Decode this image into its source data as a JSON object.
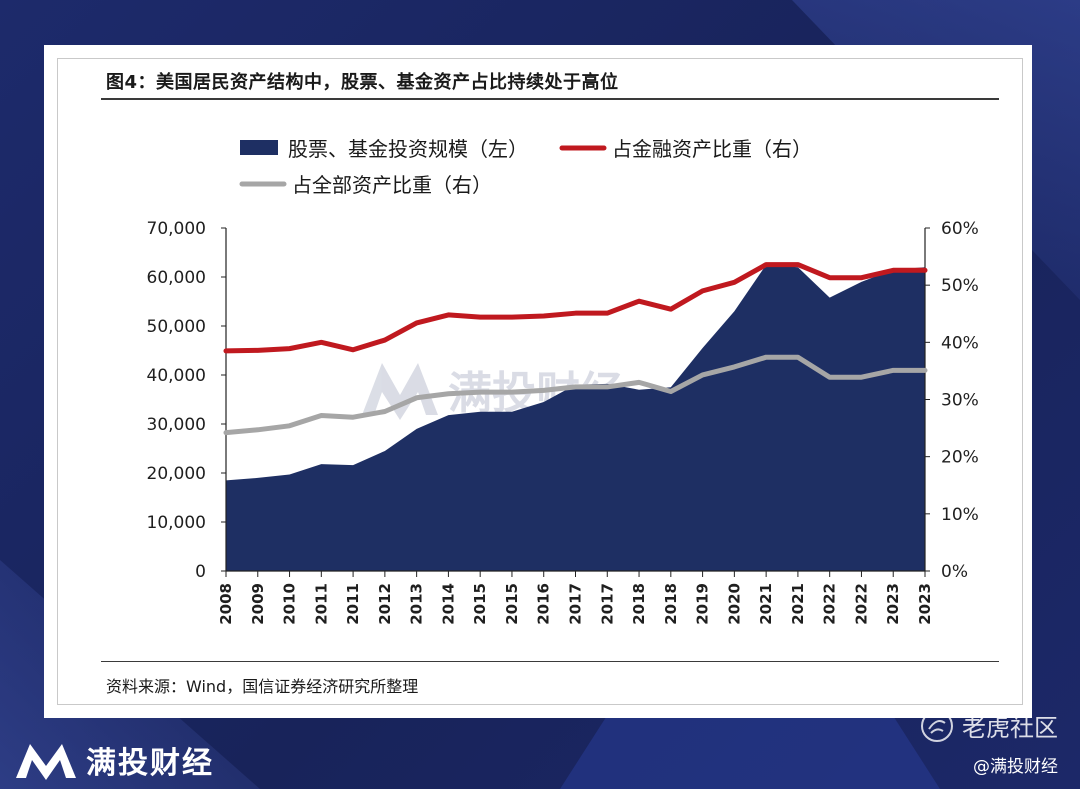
{
  "figure": {
    "title": "图4：美国居民资产结构中，股票、基金资产占比持续处于高位",
    "source": "资料来源：Wind，国信证券经济研究所整理",
    "watermark": "满投财经"
  },
  "branding": {
    "name": "满投财经",
    "tiger_name": "老虎社区",
    "handle": "@满投财经"
  },
  "colors": {
    "area": "#1e2f63",
    "red_line": "#c0191f",
    "gray_line": "#a6a6a6"
  },
  "chart_data": {
    "type": "area",
    "x": [
      "2008",
      "2009",
      "2010",
      "2011",
      "2011",
      "2012",
      "2013",
      "2014",
      "2015",
      "2015",
      "2016",
      "2017",
      "2017",
      "2018",
      "2018",
      "2019",
      "2020",
      "2021",
      "2021",
      "2022",
      "2022",
      "2023",
      "2023"
    ],
    "left_axis": {
      "ylim": [
        0,
        70000
      ],
      "ticks": [
        "0",
        "10,000",
        "20,000",
        "30,000",
        "40,000",
        "50,000",
        "60,000",
        "70,000"
      ]
    },
    "right_axis": {
      "ylim": [
        0,
        60
      ],
      "ticks": [
        "0%",
        "10%",
        "20%",
        "30%",
        "40%",
        "50%",
        "60%"
      ]
    },
    "legend_position": "top-left",
    "series": [
      {
        "name": "股票、基金投资规模（左）",
        "axis": "left",
        "kind": "area",
        "values": [
          18500,
          19000,
          19700,
          21800,
          21600,
          24500,
          29000,
          31800,
          32500,
          32500,
          34500,
          38000,
          38200,
          37000,
          37500,
          45500,
          53000,
          62500,
          62000,
          55800,
          59000,
          61500,
          62000
        ]
      },
      {
        "name": "占金融资产比重（右）",
        "axis": "right",
        "kind": "line",
        "values": [
          38.5,
          38.6,
          38.9,
          40.0,
          38.7,
          40.4,
          43.4,
          44.8,
          44.4,
          44.4,
          44.6,
          45.1,
          45.1,
          47.2,
          45.8,
          49.0,
          50.5,
          53.6,
          53.6,
          51.3,
          51.3,
          52.6,
          52.6
        ]
      },
      {
        "name": "占全部资产比重（右）",
        "axis": "right",
        "kind": "line",
        "values": [
          24.2,
          24.7,
          25.4,
          27.2,
          26.9,
          27.9,
          30.3,
          31.0,
          31.3,
          31.3,
          31.6,
          32.2,
          32.2,
          33.0,
          31.4,
          34.3,
          35.7,
          37.4,
          37.4,
          33.9,
          33.9,
          35.1,
          35.1
        ]
      }
    ]
  }
}
